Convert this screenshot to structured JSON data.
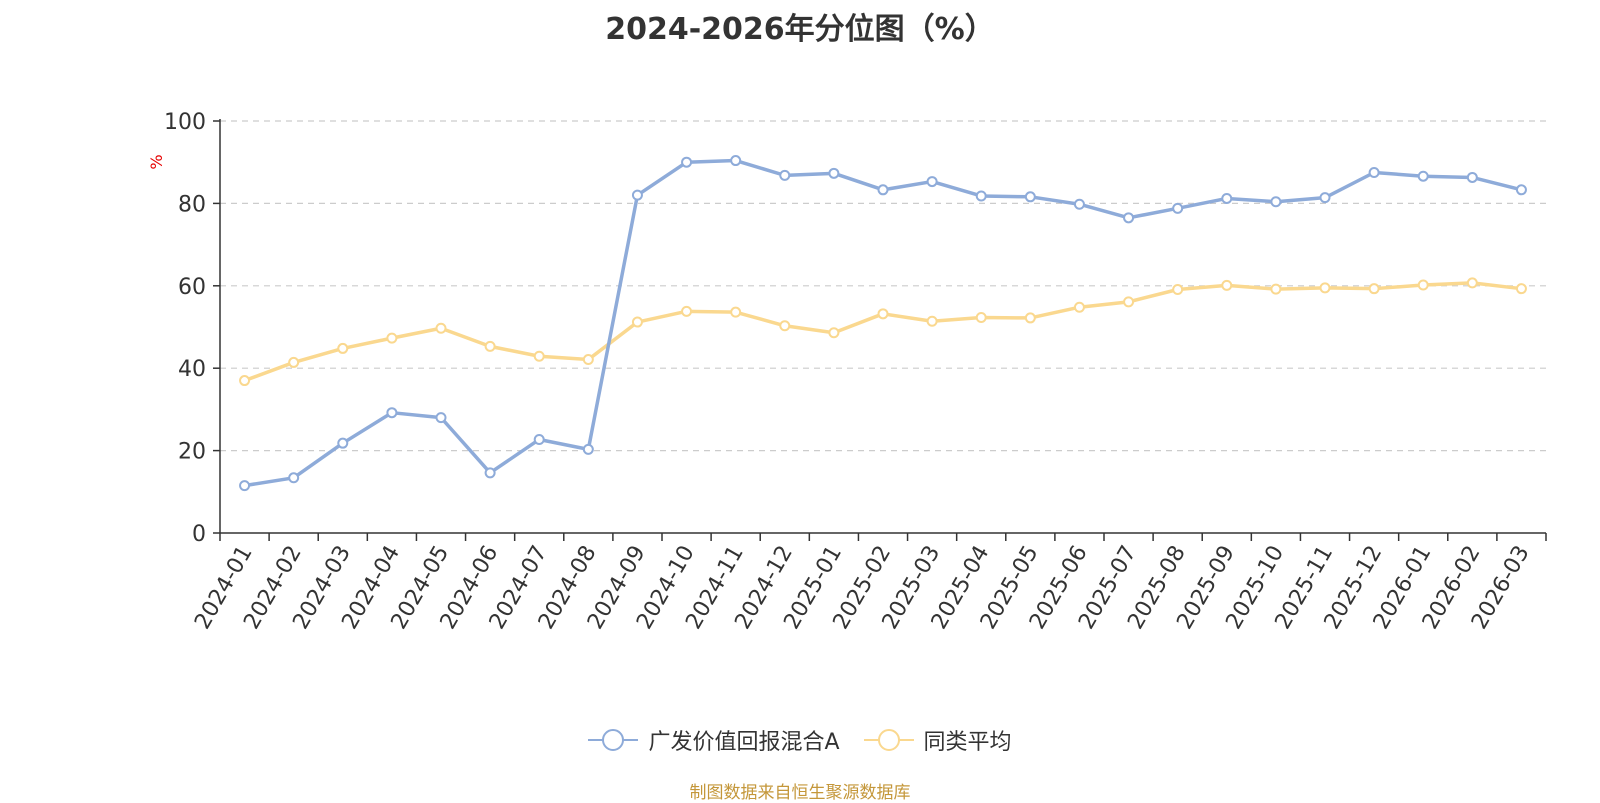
{
  "chart_data": {
    "type": "line",
    "title": "2024-2026年分位图（%）",
    "ylabel": "%",
    "xlabel": "",
    "ylim": [
      0,
      100
    ],
    "yticks": [
      0,
      20,
      40,
      60,
      80,
      100
    ],
    "grid": true,
    "legend_position": "bottom",
    "categories": [
      "2024-01",
      "2024-02",
      "2024-03",
      "2024-04",
      "2024-05",
      "2024-06",
      "2024-07",
      "2024-08",
      "2024-09",
      "2024-10",
      "2024-11",
      "2024-12",
      "2025-01",
      "2025-02",
      "2025-03",
      "2025-04",
      "2025-05",
      "2025-06",
      "2025-07",
      "2025-08",
      "2025-09",
      "2025-10",
      "2025-11",
      "2025-12",
      "2026-01",
      "2026-02",
      "2026-03"
    ],
    "series": [
      {
        "name": "广发价值回报混合A",
        "color": "#8eabd9",
        "values": [
          11.5,
          13.4,
          21.8,
          29.2,
          28.0,
          14.6,
          22.7,
          20.3,
          82.0,
          90.0,
          90.4,
          86.8,
          87.3,
          83.3,
          85.3,
          81.8,
          81.6,
          79.8,
          76.5,
          78.8,
          81.2,
          80.4,
          81.4,
          87.5,
          86.6,
          86.3,
          83.3
        ]
      },
      {
        "name": "同类平均",
        "color": "#fad88f",
        "values": [
          37.0,
          41.4,
          44.8,
          47.3,
          49.7,
          45.3,
          42.9,
          42.1,
          51.2,
          53.8,
          53.6,
          50.3,
          48.6,
          53.2,
          51.4,
          52.3,
          52.2,
          54.8,
          56.1,
          59.1,
          60.1,
          59.2,
          59.5,
          59.3,
          60.2,
          60.7,
          59.3
        ]
      }
    ]
  },
  "footer": {
    "source": "制图数据来自恒生聚源数据库"
  }
}
